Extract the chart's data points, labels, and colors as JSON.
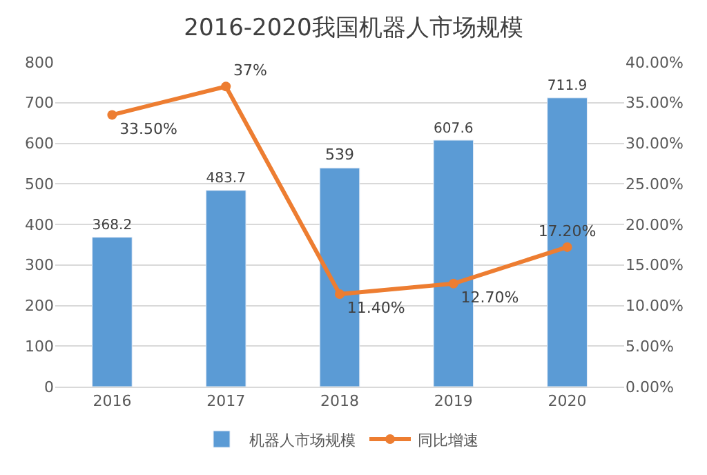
{
  "chart_data": {
    "type": "bar",
    "title": "2016-2020我国机器人市场规模",
    "categories": [
      "2016",
      "2017",
      "2018",
      "2019",
      "2020"
    ],
    "series": [
      {
        "name": "机器人市场规模",
        "color": "#5b9bd5",
        "values": [
          368.2,
          483.7,
          539,
          607.6,
          711.9
        ],
        "value_labels": [
          "368.2",
          "483.7",
          "539",
          "607.6",
          "711.9"
        ]
      },
      {
        "name": "同比增速",
        "type": "line",
        "axis": "y2",
        "color": "#ed7d31",
        "marker": "circle",
        "values": [
          33.5,
          37,
          11.4,
          12.7,
          17.2
        ],
        "value_labels": [
          "33.50%",
          "37%",
          "11.40%",
          "12.70%",
          "17.20%"
        ]
      }
    ],
    "ylim": [
      0,
      800
    ],
    "yticks": [
      0,
      100,
      200,
      300,
      400,
      500,
      600,
      700,
      800
    ],
    "y2lim": [
      0,
      40
    ],
    "y2ticks": [
      {
        "value": 0,
        "label": "0.00%"
      },
      {
        "value": 5,
        "label": "5.00%"
      },
      {
        "value": 10,
        "label": "10.00%"
      },
      {
        "value": 15,
        "label": "15.00%"
      },
      {
        "value": 20,
        "label": "20.00%"
      },
      {
        "value": 25,
        "label": "25.00%"
      },
      {
        "value": 30,
        "label": "30.00%"
      },
      {
        "value": 35,
        "label": "35.00%"
      },
      {
        "value": 40,
        "label": "40.00%"
      }
    ],
    "grid": "y",
    "legend": "bottom"
  }
}
